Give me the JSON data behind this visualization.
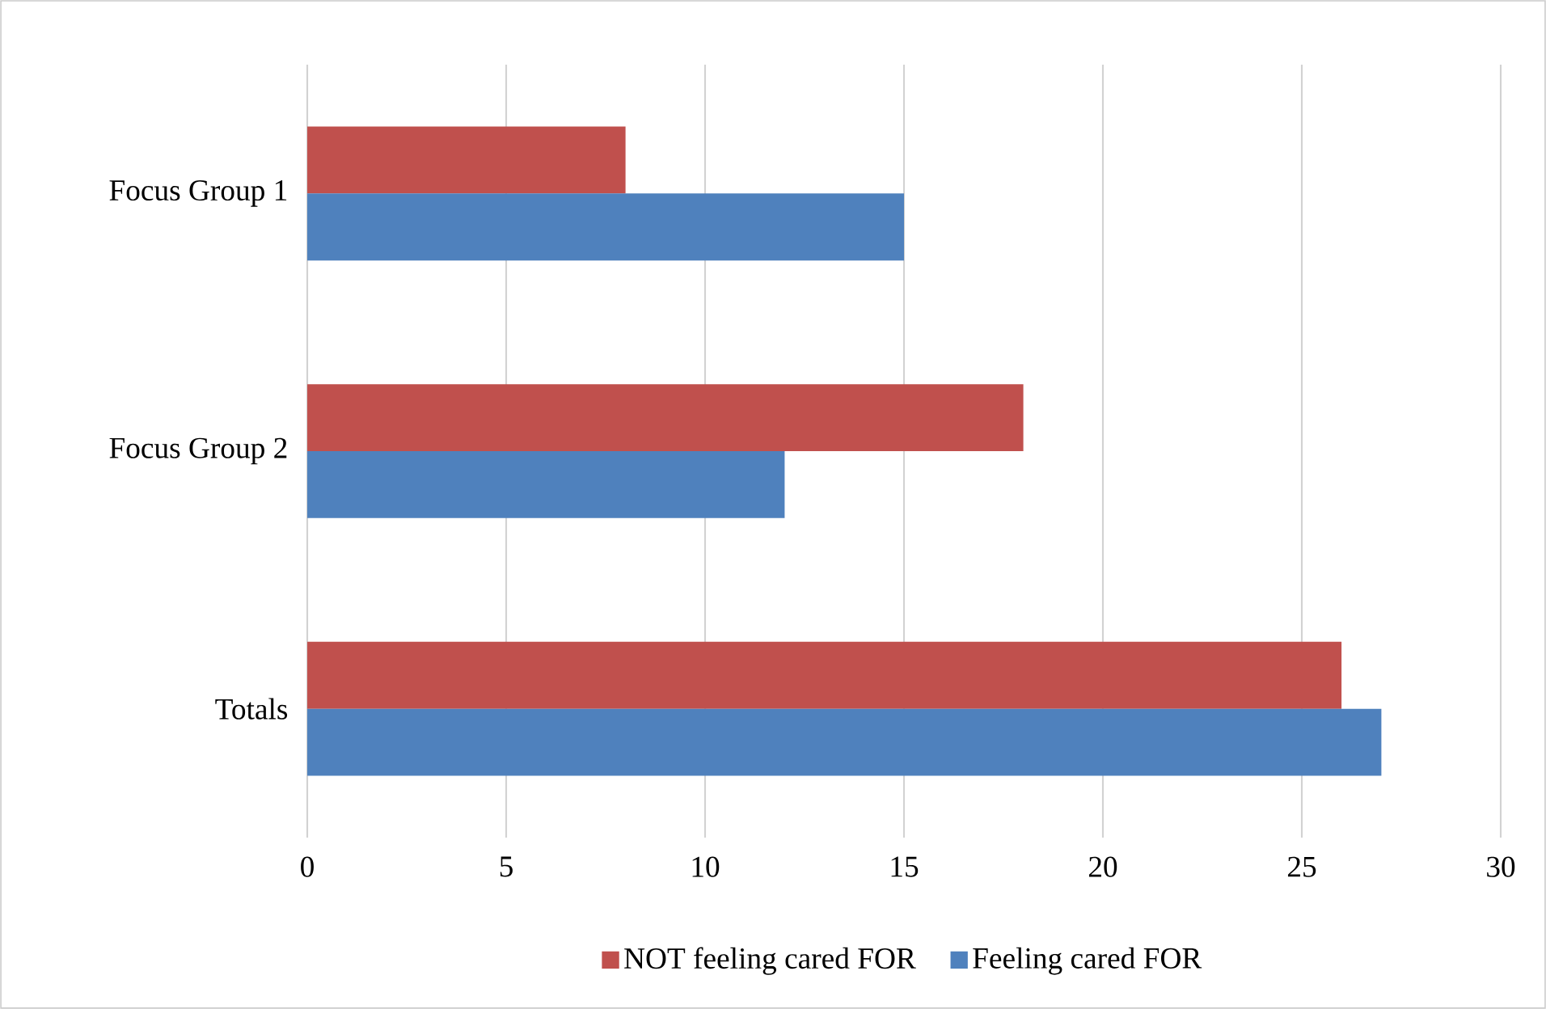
{
  "chart_data": {
    "type": "bar",
    "orientation": "horizontal",
    "categories": [
      "Focus Group 1",
      "Focus Group 2",
      "Totals"
    ],
    "series": [
      {
        "name": "NOT feeling cared FOR",
        "color": "#c0504d",
        "values": [
          8,
          18,
          26
        ]
      },
      {
        "name": "Feeling cared FOR",
        "color": "#4f81bd",
        "values": [
          15,
          12,
          27
        ]
      }
    ],
    "xlim": [
      0,
      30
    ],
    "xticks": [
      0,
      5,
      10,
      15,
      20,
      25,
      30
    ],
    "grid": "x",
    "legend": "bottom"
  }
}
